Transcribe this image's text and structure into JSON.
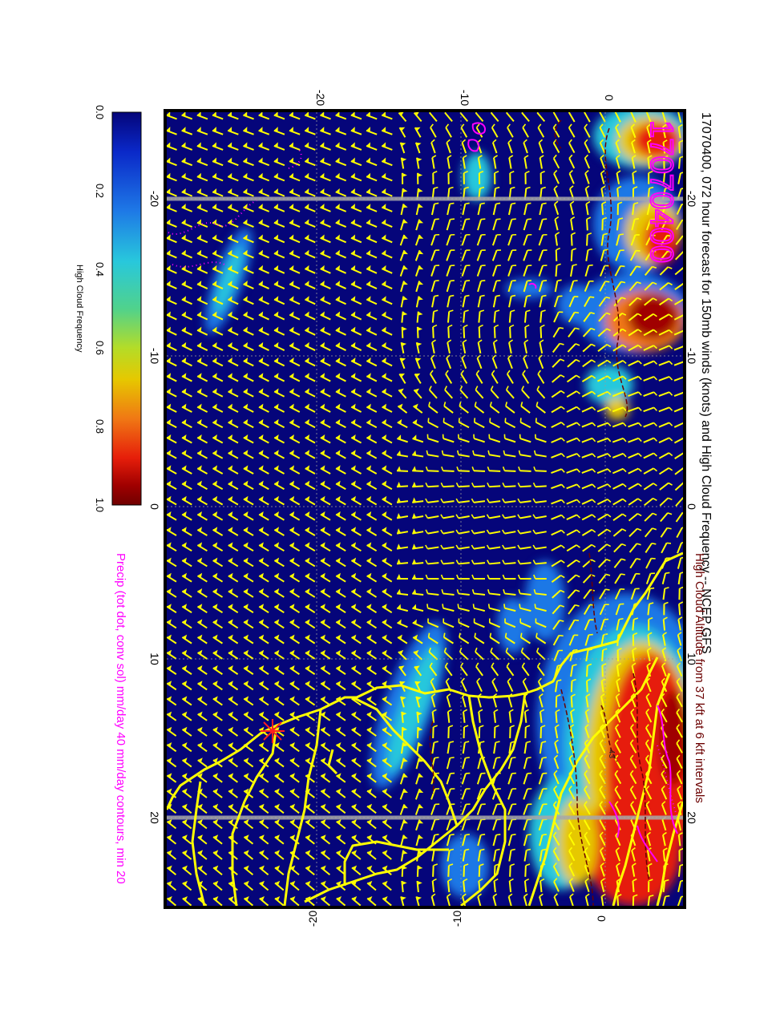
{
  "title": "17070400, 072 hour forecast for 150mb winds (knots) and High Cloud Frequency -- NCEP GFS",
  "stamp": "17070400",
  "legend": {
    "label": "High Cloud Frequency",
    "ticks": [
      "0.0",
      "0.2",
      "0.4",
      "0.6",
      "0.8",
      "1.0"
    ],
    "colors": [
      "#05057a",
      "#0a28c8",
      "#1e78e6",
      "#28c8dc",
      "#50d28c",
      "#b4dc28",
      "#e6c800",
      "#f07814",
      "#e61e0a",
      "#a00000",
      "#700000"
    ]
  },
  "notes": {
    "line1": "High Cloud Altitude from 37 kft at 6 kft intervals",
    "line2": "Precip (tot dot, conv sol) mm/day 40 mm/day contours, min 20"
  },
  "axes": {
    "lon_ticks": [
      "-20",
      "-10",
      "0",
      "10",
      "20"
    ],
    "lat_ticks": [
      "-20",
      "-10",
      "0"
    ]
  },
  "map_labels": {
    "contour_label": "43"
  },
  "colors": {
    "wind_barbs": "#ffff00",
    "coastline": "#ffff00",
    "precip": "#ff00ff",
    "altitude_contours": "#6b0000",
    "background_ocean": "#05057a",
    "marker": "#ff2020"
  }
}
